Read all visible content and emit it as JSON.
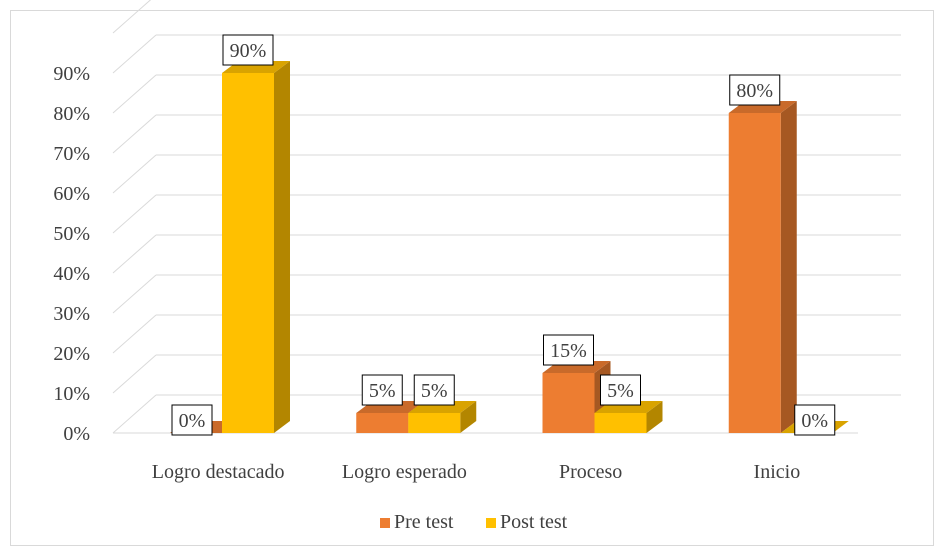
{
  "chart_data": {
    "type": "bar",
    "categories": [
      "Logro destacado",
      "Logro esperado",
      "Proceso",
      "Inicio"
    ],
    "series": [
      {
        "name": "Pre test",
        "values": [
          0,
          5,
          15,
          80
        ],
        "color": "#ED7D31"
      },
      {
        "name": "Post test",
        "values": [
          90,
          5,
          5,
          0
        ],
        "color": "#FFC000"
      }
    ],
    "y_ticks": [
      "0%",
      "10%",
      "20%",
      "30%",
      "40%",
      "50%",
      "60%",
      "70%",
      "80%",
      "90%"
    ],
    "ylim": [
      0,
      90
    ],
    "data_labels": [
      [
        "0%",
        "5%",
        "15%",
        "80%"
      ],
      [
        "90%",
        "5%",
        "5%",
        "0%"
      ]
    ],
    "legend_position": "bottom",
    "grid": true
  }
}
